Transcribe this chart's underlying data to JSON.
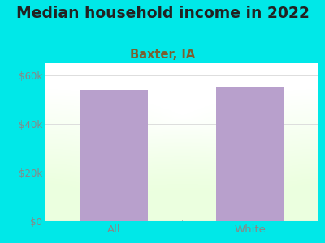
{
  "title": "Median household income in 2022",
  "subtitle": "Baxter, IA",
  "categories": [
    "All",
    "White"
  ],
  "values": [
    54000,
    55500
  ],
  "bar_color": "#b8a0cc",
  "background_color": "#00e8e8",
  "plot_bg_color": "#f0f8ee",
  "title_fontsize": 13.5,
  "subtitle_fontsize": 10.5,
  "title_color": "#222222",
  "subtitle_color": "#7a6030",
  "tick_color": "#888888",
  "ylim": [
    0,
    65000
  ],
  "yticks": [
    0,
    20000,
    40000,
    60000
  ],
  "ytick_labels": [
    "$0",
    "$20k",
    "$40k",
    "$60k"
  ],
  "grid_color": "#dddddd",
  "bar_width": 0.5
}
